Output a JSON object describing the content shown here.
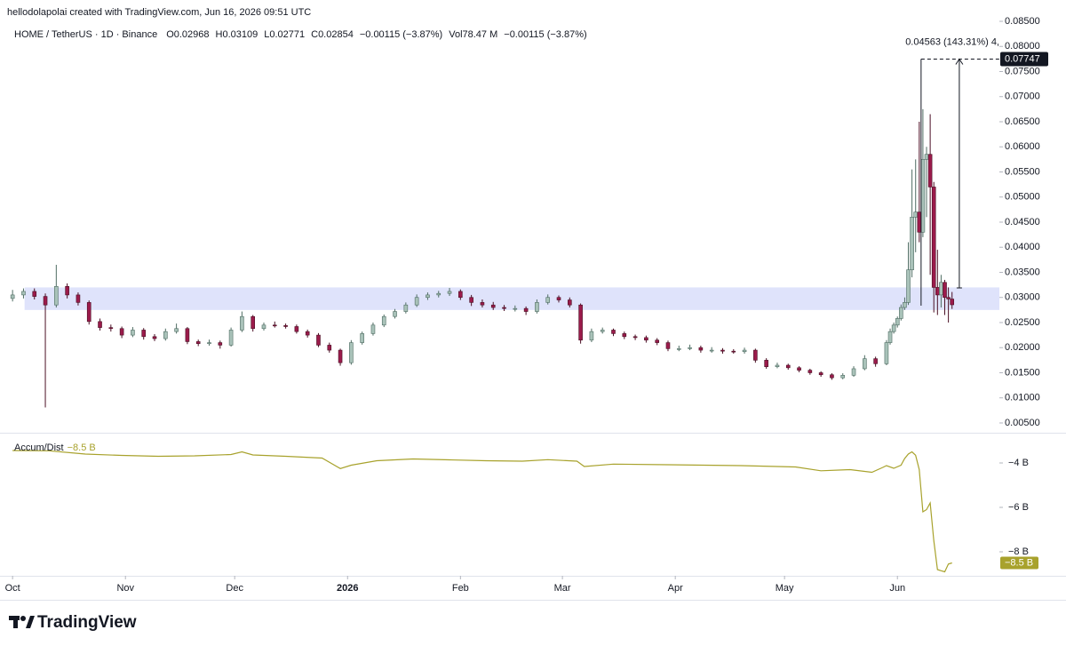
{
  "header": {
    "credit": "hellodolapolai created with TradingView.com, Jun 16, 2026 09:51 UTC",
    "symbol": "HOME / TetherUS · 1D · Binance",
    "legend_values": [
      "O0.02968",
      "H0.03109",
      "L0.02771",
      "C0.02854",
      "−0.00115 (−3.87%)",
      "Vol78.47 M",
      "−0.00115 (−3.87%)"
    ],
    "watermark": "TradingView"
  },
  "chart_data": [
    {
      "type": "candlestick",
      "up_color": "#a9c2b9",
      "down_color": "#9b1b4b",
      "xlim": [
        -1.5,
        271
      ],
      "ylim": [
        0.00305,
        0.08606
      ],
      "xticks": [
        {
          "value": 0,
          "label": "Oct"
        },
        {
          "value": 31,
          "label": "Nov"
        },
        {
          "value": 61,
          "label": "Dec"
        },
        {
          "value": 92,
          "label": "2026"
        },
        {
          "value": 123,
          "label": "Feb"
        },
        {
          "value": 151,
          "label": "Mar"
        },
        {
          "value": 182,
          "label": "Apr"
        },
        {
          "value": 212,
          "label": "May"
        },
        {
          "value": 243,
          "label": "Jun"
        }
      ],
      "yticks": [
        {
          "value": 0.005,
          "label": "0.00500"
        },
        {
          "value": 0.01,
          "label": "0.01000"
        },
        {
          "value": 0.015,
          "label": "0.01500"
        },
        {
          "value": 0.02,
          "label": "0.02000"
        },
        {
          "value": 0.025,
          "label": "0.02500"
        },
        {
          "value": 0.03,
          "label": "0.03000"
        },
        {
          "value": 0.035,
          "label": "0.03500"
        },
        {
          "value": 0.04,
          "label": "0.04000"
        },
        {
          "value": 0.045,
          "label": "0.04500"
        },
        {
          "value": 0.05,
          "label": "0.05000"
        },
        {
          "value": 0.055,
          "label": "0.05500"
        },
        {
          "value": 0.06,
          "label": "0.06000"
        },
        {
          "value": 0.065,
          "label": "0.06500"
        },
        {
          "value": 0.07,
          "label": "0.07000"
        },
        {
          "value": 0.075,
          "label": "0.07500"
        },
        {
          "value": 0.08,
          "label": "0.08000"
        },
        {
          "value": 0.085,
          "label": "0.08500"
        }
      ],
      "zone": {
        "low": 0.0275,
        "high": 0.032,
        "start": 3.3,
        "color": "#dfe3fb"
      },
      "measure": {
        "start_price": 0.0319,
        "end_price": 0.07747,
        "x": 260,
        "x_start": 249.5,
        "label": "0.04563 (143.31%) 4,"
      },
      "x": [
        0,
        3,
        6,
        9,
        12,
        15,
        18,
        21,
        24,
        27,
        30,
        33,
        36,
        39,
        42,
        45,
        48,
        51,
        54,
        57,
        60,
        63,
        66,
        69,
        72,
        75,
        78,
        81,
        84,
        87,
        90,
        93,
        96,
        99,
        102,
        105,
        108,
        111,
        114,
        117,
        120,
        123,
        126,
        129,
        132,
        135,
        138,
        141,
        144,
        147,
        150,
        153,
        156,
        159,
        162,
        165,
        168,
        171,
        174,
        177,
        180,
        183,
        186,
        189,
        192,
        195,
        198,
        201,
        204,
        207,
        210,
        213,
        216,
        219,
        222,
        225,
        228,
        231,
        234,
        237,
        240,
        241,
        242,
        243,
        244,
        245,
        246,
        247,
        248,
        249,
        250,
        251,
        252,
        253,
        254,
        255,
        256,
        257,
        258
      ],
      "ohlc": [
        [
          0.0298,
          0.0315,
          0.0292,
          0.0305
        ],
        [
          0.0305,
          0.0318,
          0.0298,
          0.0312
        ],
        [
          0.0312,
          0.0318,
          0.0296,
          0.0302
        ],
        [
          0.0302,
          0.0308,
          0.0081,
          0.0285
        ],
        [
          0.0285,
          0.0365,
          0.028,
          0.0322
        ],
        [
          0.0322,
          0.0328,
          0.0298,
          0.0305
        ],
        [
          0.0305,
          0.031,
          0.0284,
          0.029
        ],
        [
          0.029,
          0.0294,
          0.0246,
          0.0252
        ],
        [
          0.0252,
          0.0258,
          0.0234,
          0.024
        ],
        [
          0.024,
          0.0246,
          0.0232,
          0.0238
        ],
        [
          0.0238,
          0.0242,
          0.0219,
          0.0225
        ],
        [
          0.0225,
          0.0241,
          0.0221,
          0.0235
        ],
        [
          0.0235,
          0.0239,
          0.0216,
          0.0222
        ],
        [
          0.0222,
          0.0227,
          0.0213,
          0.0218
        ],
        [
          0.0218,
          0.0238,
          0.0214,
          0.0232
        ],
        [
          0.0232,
          0.0248,
          0.0228,
          0.0238
        ],
        [
          0.0238,
          0.0241,
          0.0207,
          0.0212
        ],
        [
          0.0212,
          0.0216,
          0.0203,
          0.0208
        ],
        [
          0.0208,
          0.0216,
          0.0204,
          0.021
        ],
        [
          0.021,
          0.0214,
          0.0198,
          0.0205
        ],
        [
          0.0205,
          0.024,
          0.0202,
          0.0235
        ],
        [
          0.0235,
          0.0272,
          0.0231,
          0.0262
        ],
        [
          0.0262,
          0.0265,
          0.0232,
          0.0238
        ],
        [
          0.0238,
          0.025,
          0.0234,
          0.0245
        ],
        [
          0.0245,
          0.0252,
          0.024,
          0.0244
        ],
        [
          0.0244,
          0.0248,
          0.0238,
          0.0242
        ],
        [
          0.0242,
          0.0246,
          0.0228,
          0.0232
        ],
        [
          0.0232,
          0.0236,
          0.022,
          0.0225
        ],
        [
          0.0225,
          0.0229,
          0.0201,
          0.0205
        ],
        [
          0.0205,
          0.021,
          0.019,
          0.0195
        ],
        [
          0.0195,
          0.0198,
          0.0164,
          0.017
        ],
        [
          0.017,
          0.0215,
          0.0166,
          0.021
        ],
        [
          0.021,
          0.0232,
          0.0206,
          0.0228
        ],
        [
          0.0228,
          0.025,
          0.0224,
          0.0245
        ],
        [
          0.0245,
          0.0266,
          0.0241,
          0.0262
        ],
        [
          0.0262,
          0.0277,
          0.0258,
          0.0272
        ],
        [
          0.0272,
          0.029,
          0.0268,
          0.0285
        ],
        [
          0.0285,
          0.0306,
          0.0281,
          0.03
        ],
        [
          0.03,
          0.031,
          0.0295,
          0.0305
        ],
        [
          0.0305,
          0.0313,
          0.03,
          0.0308
        ],
        [
          0.0308,
          0.0319,
          0.0303,
          0.0312
        ],
        [
          0.0312,
          0.0316,
          0.0295,
          0.03
        ],
        [
          0.03,
          0.0305,
          0.0283,
          0.029
        ],
        [
          0.029,
          0.0296,
          0.028,
          0.0285
        ],
        [
          0.0285,
          0.0291,
          0.0275,
          0.028
        ],
        [
          0.028,
          0.0285,
          0.0273,
          0.0278
        ],
        [
          0.0278,
          0.0284,
          0.0272,
          0.0278
        ],
        [
          0.0278,
          0.0282,
          0.0265,
          0.0272
        ],
        [
          0.0272,
          0.0296,
          0.0268,
          0.029
        ],
        [
          0.029,
          0.0306,
          0.0286,
          0.03
        ],
        [
          0.03,
          0.0304,
          0.029,
          0.0295
        ],
        [
          0.0295,
          0.03,
          0.028,
          0.0285
        ],
        [
          0.0285,
          0.0288,
          0.0208,
          0.0215
        ],
        [
          0.0215,
          0.0238,
          0.0211,
          0.0232
        ],
        [
          0.0232,
          0.024,
          0.0228,
          0.0235
        ],
        [
          0.0235,
          0.0238,
          0.0223,
          0.0228
        ],
        [
          0.0228,
          0.0232,
          0.0217,
          0.0222
        ],
        [
          0.0222,
          0.0226,
          0.0215,
          0.022
        ],
        [
          0.022,
          0.0224,
          0.021,
          0.0215
        ],
        [
          0.0215,
          0.0219,
          0.0205,
          0.021
        ],
        [
          0.021,
          0.0214,
          0.0193,
          0.0198
        ],
        [
          0.0198,
          0.0204,
          0.0193,
          0.0198
        ],
        [
          0.0198,
          0.0206,
          0.0195,
          0.02
        ],
        [
          0.02,
          0.0204,
          0.019,
          0.0195
        ],
        [
          0.0195,
          0.0201,
          0.019,
          0.0195
        ],
        [
          0.0195,
          0.0199,
          0.0188,
          0.0193
        ],
        [
          0.0193,
          0.0197,
          0.0188,
          0.0192
        ],
        [
          0.0192,
          0.02,
          0.0188,
          0.0195
        ],
        [
          0.0195,
          0.0198,
          0.017,
          0.0175
        ],
        [
          0.0175,
          0.0179,
          0.0158,
          0.0162
        ],
        [
          0.0162,
          0.017,
          0.0159,
          0.0165
        ],
        [
          0.0165,
          0.0168,
          0.0156,
          0.016
        ],
        [
          0.016,
          0.0163,
          0.0151,
          0.0155
        ],
        [
          0.0155,
          0.0158,
          0.0146,
          0.015
        ],
        [
          0.015,
          0.0153,
          0.0142,
          0.0146
        ],
        [
          0.0146,
          0.0149,
          0.0136,
          0.014
        ],
        [
          0.014,
          0.0149,
          0.0137,
          0.0145
        ],
        [
          0.0145,
          0.0163,
          0.0142,
          0.0158
        ],
        [
          0.0158,
          0.0185,
          0.0155,
          0.0178
        ],
        [
          0.0178,
          0.0182,
          0.0162,
          0.0168
        ],
        [
          0.0168,
          0.0215,
          0.0165,
          0.021
        ],
        [
          0.021,
          0.0238,
          0.0206,
          0.0232
        ],
        [
          0.0232,
          0.025,
          0.0228,
          0.0245
        ],
        [
          0.0245,
          0.0262,
          0.024,
          0.0258
        ],
        [
          0.0258,
          0.0286,
          0.0254,
          0.028
        ],
        [
          0.028,
          0.03,
          0.0275,
          0.029
        ],
        [
          0.029,
          0.041,
          0.0285,
          0.0355
        ],
        [
          0.0355,
          0.0555,
          0.034,
          0.046
        ],
        [
          0.046,
          0.0575,
          0.039,
          0.047
        ],
        [
          0.047,
          0.065,
          0.041,
          0.043
        ],
        [
          0.043,
          0.0675,
          0.042,
          0.0575
        ],
        [
          0.0575,
          0.06,
          0.046,
          0.0585
        ],
        [
          0.0585,
          0.0665,
          0.0345,
          0.052
        ],
        [
          0.052,
          0.053,
          0.027,
          0.032
        ],
        [
          0.032,
          0.0395,
          0.0265,
          0.0305
        ],
        [
          0.0305,
          0.0345,
          0.028,
          0.033
        ],
        [
          0.033,
          0.0335,
          0.0265,
          0.03
        ],
        [
          0.03,
          0.032,
          0.025,
          0.0297
        ],
        [
          0.02968,
          0.03109,
          0.02771,
          0.02854
        ]
      ]
    },
    {
      "type": "line",
      "name": "Accum/Dist",
      "color": "#a8a22c",
      "xlim": [
        -1.5,
        271
      ],
      "ylim": [
        -9.08,
        -2.76
      ],
      "yticks": [
        {
          "value": -4,
          "label": "−4 B"
        },
        {
          "value": -6,
          "label": "−6 B"
        },
        {
          "value": -8,
          "label": "−8 B"
        }
      ],
      "last_value": {
        "value": -8.5,
        "label": "−8.5 B"
      },
      "x": [
        0,
        10,
        20,
        30,
        40,
        50,
        60,
        63,
        66,
        75,
        85,
        90,
        93,
        100,
        110,
        120,
        130,
        140,
        147,
        155,
        157,
        165,
        180,
        200,
        215,
        222,
        230,
        236,
        239,
        240,
        242,
        244,
        245,
        246,
        247,
        248,
        249,
        250,
        251,
        252,
        253,
        254,
        255,
        256,
        257,
        258
      ],
      "values": [
        -3.44,
        -3.45,
        -3.6,
        -3.66,
        -3.7,
        -3.68,
        -3.62,
        -3.5,
        -3.64,
        -3.7,
        -3.78,
        -4.25,
        -4.1,
        -3.9,
        -3.82,
        -3.86,
        -3.9,
        -3.92,
        -3.85,
        -3.92,
        -4.16,
        -4.05,
        -4.08,
        -4.12,
        -4.18,
        -4.35,
        -4.3,
        -4.42,
        -4.2,
        -4.12,
        -4.24,
        -4.1,
        -3.8,
        -3.6,
        -3.5,
        -3.65,
        -4.3,
        -6.2,
        -6.1,
        -5.8,
        -7.5,
        -8.8,
        -8.85,
        -8.9,
        -8.55,
        -8.5
      ]
    }
  ]
}
